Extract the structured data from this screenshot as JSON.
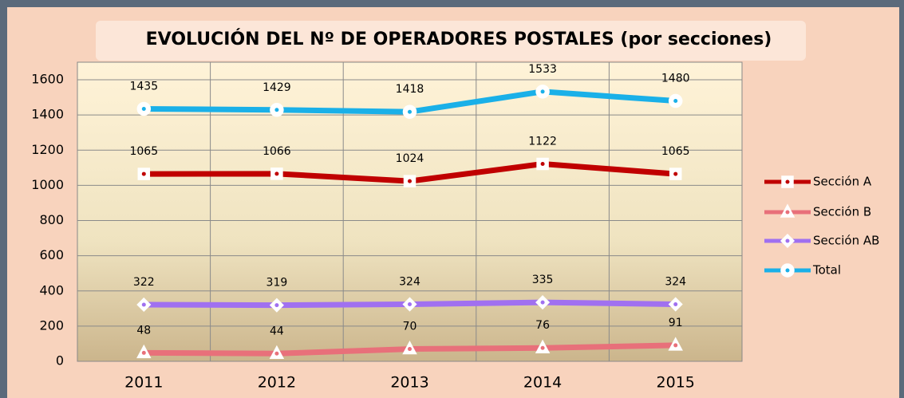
{
  "chart_data": {
    "type": "line",
    "title": "EVOLUCIÓN DEL Nº DE OPERADORES POSTALES (por secciones)",
    "categories": [
      "2011",
      "2012",
      "2013",
      "2014",
      "2015"
    ],
    "series": [
      {
        "name": "Sección A",
        "color": "#c00000",
        "marker": "square",
        "values": [
          1065,
          1066,
          1024,
          1122,
          1065
        ]
      },
      {
        "name": "Sección B",
        "color": "#e8707a",
        "marker": "triangle",
        "values": [
          48,
          44,
          70,
          76,
          91
        ]
      },
      {
        "name": "Sección AB",
        "color": "#a070f0",
        "marker": "diamond",
        "values": [
          322,
          319,
          324,
          335,
          324
        ]
      },
      {
        "name": "Total",
        "color": "#1ab0e8",
        "marker": "circle",
        "values": [
          1435,
          1429,
          1418,
          1533,
          1480
        ]
      }
    ],
    "ylim": [
      0,
      1700
    ],
    "yticks": [
      0,
      200,
      400,
      600,
      800,
      1000,
      1200,
      1400,
      1600
    ],
    "grid": true,
    "legend": "right"
  }
}
